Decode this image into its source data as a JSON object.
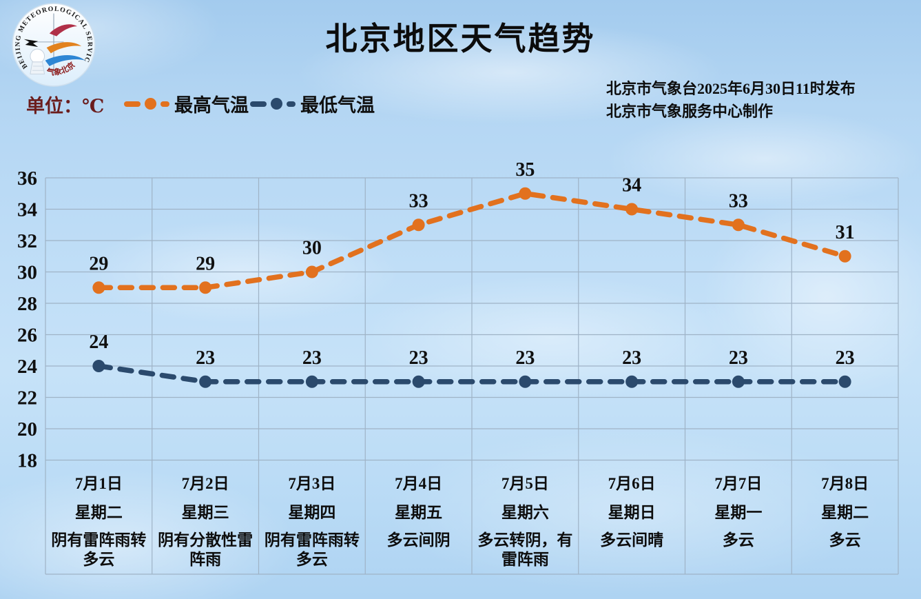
{
  "page": {
    "title": "北京地区天气趋势",
    "unit_label": "单位：℃",
    "publisher_line1": "北京市气象台2025年6月30日11时发布",
    "publisher_line2": "北京市气象服务中心制作",
    "logo": {
      "arc_text": "BEIJING METEOROLOGICAL SERVICE",
      "arc_text_cn": "气象北京"
    }
  },
  "colors": {
    "max_temp": "#e2711e",
    "min_temp": "#2b4a6d",
    "grid": "#9fb3c6",
    "unit_text": "#6b1d1d",
    "value_text": "#101010"
  },
  "chart_data": {
    "type": "line",
    "title": "北京地区天气趋势",
    "x": [
      "7月1日",
      "7月2日",
      "7月3日",
      "7月4日",
      "7月5日",
      "7月6日",
      "7月7日",
      "7月8日"
    ],
    "weekdays": [
      "星期二",
      "星期三",
      "星期四",
      "星期五",
      "星期六",
      "星期日",
      "星期一",
      "星期二"
    ],
    "weather": [
      "阴有雷阵雨转多云",
      "阴有分散性雷阵雨",
      "阴有雷阵雨转多云",
      "多云间阴",
      "多云转阴，有雷阵雨",
      "多云间晴",
      "多云",
      "多云"
    ],
    "series": [
      {
        "name": "最高气温",
        "color": "#e2711e",
        "values": [
          29,
          29,
          30,
          33,
          35,
          34,
          33,
          31
        ]
      },
      {
        "name": "最低气温",
        "color": "#2b4a6d",
        "values": [
          24,
          23,
          23,
          23,
          23,
          23,
          23,
          23
        ]
      }
    ],
    "ylabel": "单位：℃",
    "ylim": [
      18,
      36
    ],
    "ytick_step": 2,
    "grid": true,
    "legend_position": "top-left",
    "line_style": "dashed"
  }
}
